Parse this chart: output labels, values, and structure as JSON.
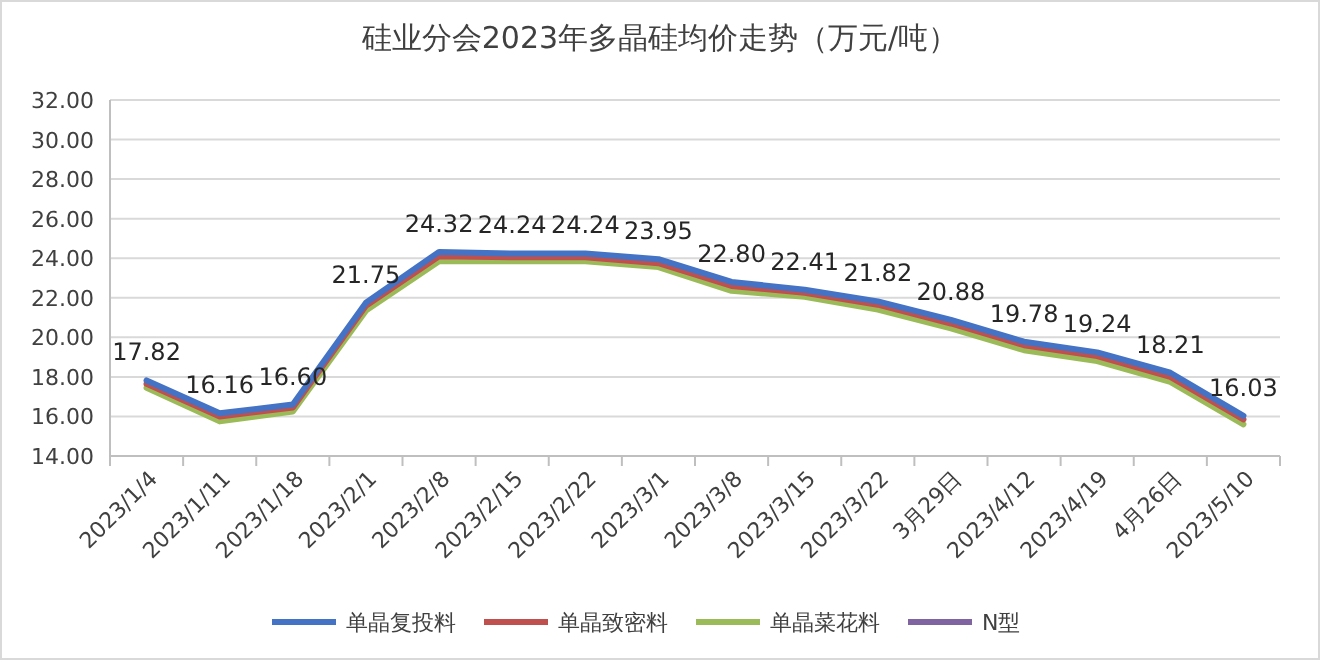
{
  "chart_data": {
    "type": "line",
    "title": "硅业分会2023年多晶硅均价走势（万元/吨）",
    "categories": [
      "2023/1/4",
      "2023/1/11",
      "2023/1/18",
      "2023/2/1",
      "2023/2/8",
      "2023/2/15",
      "2023/2/22",
      "2023/3/1",
      "2023/3/8",
      "2023/3/15",
      "2023/3/22",
      "3月29日",
      "2023/4/12",
      "2023/4/19",
      "4月26日",
      "2023/5/10"
    ],
    "series": [
      {
        "name": "单晶复投料",
        "color": "#4472c4",
        "values": [
          17.82,
          16.16,
          16.6,
          21.75,
          24.32,
          24.24,
          24.24,
          23.95,
          22.8,
          22.41,
          21.82,
          20.88,
          19.78,
          19.24,
          18.21,
          16.03
        ],
        "value_labels": [
          "17.82",
          "16.16",
          "16.60",
          "21.75",
          "24.32",
          "24.24",
          "24.24",
          "23.95",
          "22.80",
          "22.41",
          "21.82",
          "20.88",
          "19.78",
          "19.24",
          "18.21",
          "16.03"
        ]
      },
      {
        "name": "单晶致密料",
        "color": "#c0504d",
        "values": [
          17.65,
          16.0,
          16.45,
          21.6,
          24.1,
          24.05,
          24.05,
          23.75,
          22.6,
          22.25,
          21.65,
          20.7,
          19.6,
          19.05,
          18.0,
          15.85
        ]
      },
      {
        "name": "单晶菜花料",
        "color": "#9bbb59",
        "values": [
          17.45,
          15.75,
          16.25,
          21.35,
          23.85,
          23.85,
          23.85,
          23.55,
          22.35,
          22.05,
          21.4,
          20.45,
          19.35,
          18.8,
          17.75,
          15.6
        ]
      },
      {
        "name": "N型",
        "color": "#8064a2",
        "values": [
          null,
          null,
          null,
          null,
          null,
          null,
          null,
          null,
          null,
          null,
          null,
          null,
          null,
          null,
          null,
          null
        ]
      }
    ],
    "ylim": [
      14,
      32
    ],
    "yticks": [
      {
        "value": 14,
        "label": "14.00"
      },
      {
        "value": 16,
        "label": "16.00"
      },
      {
        "value": 18,
        "label": "18.00"
      },
      {
        "value": 20,
        "label": "20.00"
      },
      {
        "value": 22,
        "label": "22.00"
      },
      {
        "value": 24,
        "label": "24.00"
      },
      {
        "value": 26,
        "label": "26.00"
      },
      {
        "value": 28,
        "label": "28.00"
      },
      {
        "value": 30,
        "label": "30.00"
      },
      {
        "value": 32,
        "label": "32.00"
      }
    ],
    "grid": "y",
    "legend": "bottom",
    "marker": "none",
    "line_style": "solid"
  }
}
